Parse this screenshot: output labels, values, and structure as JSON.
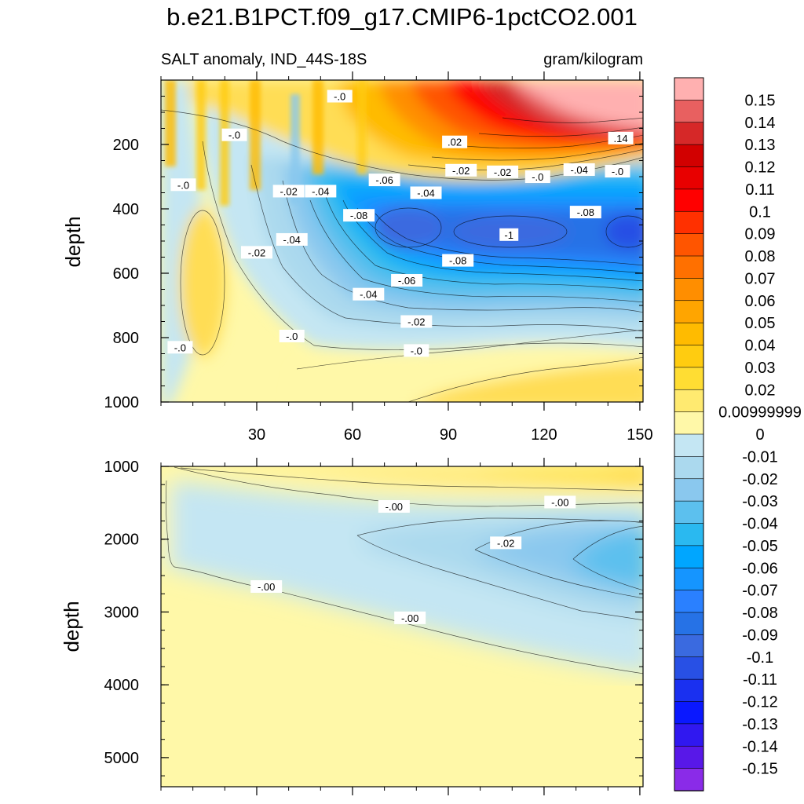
{
  "chart_data": {
    "type": "heatmap",
    "title": "b.e21.B1PCT.f09_g17.CMIP6-1pctCO2.001",
    "left_subtitle": "SALT anomaly, IND_44S-18S",
    "right_subtitle": "gram/kilogram",
    "ylabel": "depth",
    "x_range": [
      0,
      151
    ],
    "x_ticks": [
      "30",
      "60",
      "90",
      "120",
      "150"
    ],
    "x_tick_values": [
      30,
      60,
      90,
      120,
      150
    ],
    "top_panel": {
      "y_range": [
        0,
        1000
      ],
      "y_ticks": [
        "200",
        "400",
        "600",
        "800",
        "1000"
      ],
      "y_tick_values": [
        200,
        400,
        600,
        800,
        1000
      ]
    },
    "bottom_panel": {
      "y_range": [
        1000,
        5400
      ],
      "y_ticks": [
        "1000",
        "2000",
        "3000",
        "4000",
        "5000"
      ],
      "y_tick_values": [
        1000,
        2000,
        3000,
        4000,
        5000
      ]
    },
    "top_contour_labels": [
      {
        "text": "-.0",
        "x": 56,
        "y": 50
      },
      {
        "text": "-.0",
        "x": 23,
        "y": 170
      },
      {
        "text": ".02",
        "x": 92,
        "y": 192
      },
      {
        "text": ".14",
        "x": 144,
        "y": 180
      },
      {
        "text": "-.02",
        "x": 94,
        "y": 280
      },
      {
        "text": "-.02",
        "x": 107,
        "y": 285
      },
      {
        "text": "-.0",
        "x": 118,
        "y": 300
      },
      {
        "text": "-.04",
        "x": 131,
        "y": 278
      },
      {
        "text": "-.0",
        "x": 143,
        "y": 283
      },
      {
        "text": "-.0",
        "x": 7,
        "y": 325
      },
      {
        "text": "-.02",
        "x": 40,
        "y": 345
      },
      {
        "text": "-.04",
        "x": 50,
        "y": 345
      },
      {
        "text": "-.06",
        "x": 70,
        "y": 310
      },
      {
        "text": "-.04",
        "x": 83,
        "y": 350
      },
      {
        "text": "-.08",
        "x": 62,
        "y": 420
      },
      {
        "text": "-.08",
        "x": 133,
        "y": 410
      },
      {
        "text": "-1",
        "x": 109,
        "y": 480
      },
      {
        "text": "-.04",
        "x": 41,
        "y": 495
      },
      {
        "text": "-.02",
        "x": 30,
        "y": 535
      },
      {
        "text": "-.08",
        "x": 93,
        "y": 560
      },
      {
        "text": "-.06",
        "x": 77,
        "y": 622
      },
      {
        "text": "-.04",
        "x": 65,
        "y": 665
      },
      {
        "text": "-.02",
        "x": 80,
        "y": 750
      },
      {
        "text": "-.0",
        "x": 41,
        "y": 795
      },
      {
        "text": "-.0",
        "x": 80,
        "y": 840
      },
      {
        "text": "-.0",
        "x": 6,
        "y": 830
      }
    ],
    "bottom_contour_labels": [
      {
        "text": "-.00",
        "x": 73,
        "y": 1550
      },
      {
        "text": "-.00",
        "x": 125,
        "y": 1490
      },
      {
        "text": "-.02",
        "x": 108,
        "y": 2050
      },
      {
        "text": "-.00",
        "x": 33,
        "y": 2650
      },
      {
        "text": "-.00",
        "x": 78,
        "y": 3080
      }
    ],
    "colorbar": {
      "levels": [
        "0.15",
        "0.14",
        "0.13",
        "0.12",
        "0.11",
        "0.1",
        "0.09",
        "0.08",
        "0.07",
        "0.06",
        "0.05",
        "0.04",
        "0.03",
        "0.02",
        "0.00999999",
        "0",
        "-0.01",
        "-0.02",
        "-0.03",
        "-0.04",
        "-0.05",
        "-0.06",
        "-0.07",
        "-0.08",
        "-0.09",
        "-0.1",
        "-0.11",
        "-0.12",
        "-0.13",
        "-0.14",
        "-0.15"
      ],
      "colors": [
        "#FFB0B0",
        "#E86060",
        "#D62828",
        "#D20000",
        "#E80000",
        "#FF0000",
        "#FF3000",
        "#FF5500",
        "#FF7000",
        "#FF8E00",
        "#FFA500",
        "#FFBB00",
        "#FFCC10",
        "#FFDD33",
        "#FFEA70",
        "#FFF8A8",
        "#C4E6F3",
        "#ABD9EE",
        "#8AC8EE",
        "#5CC0EE",
        "#2AB9F0",
        "#00A6FF",
        "#1595FF",
        "#2A80FF",
        "#2672E6",
        "#3A6AE0",
        "#2850E5",
        "#1A30F0",
        "#0A18FF",
        "#3018F0",
        "#5818E8",
        "#8A2BE8"
      ]
    }
  }
}
